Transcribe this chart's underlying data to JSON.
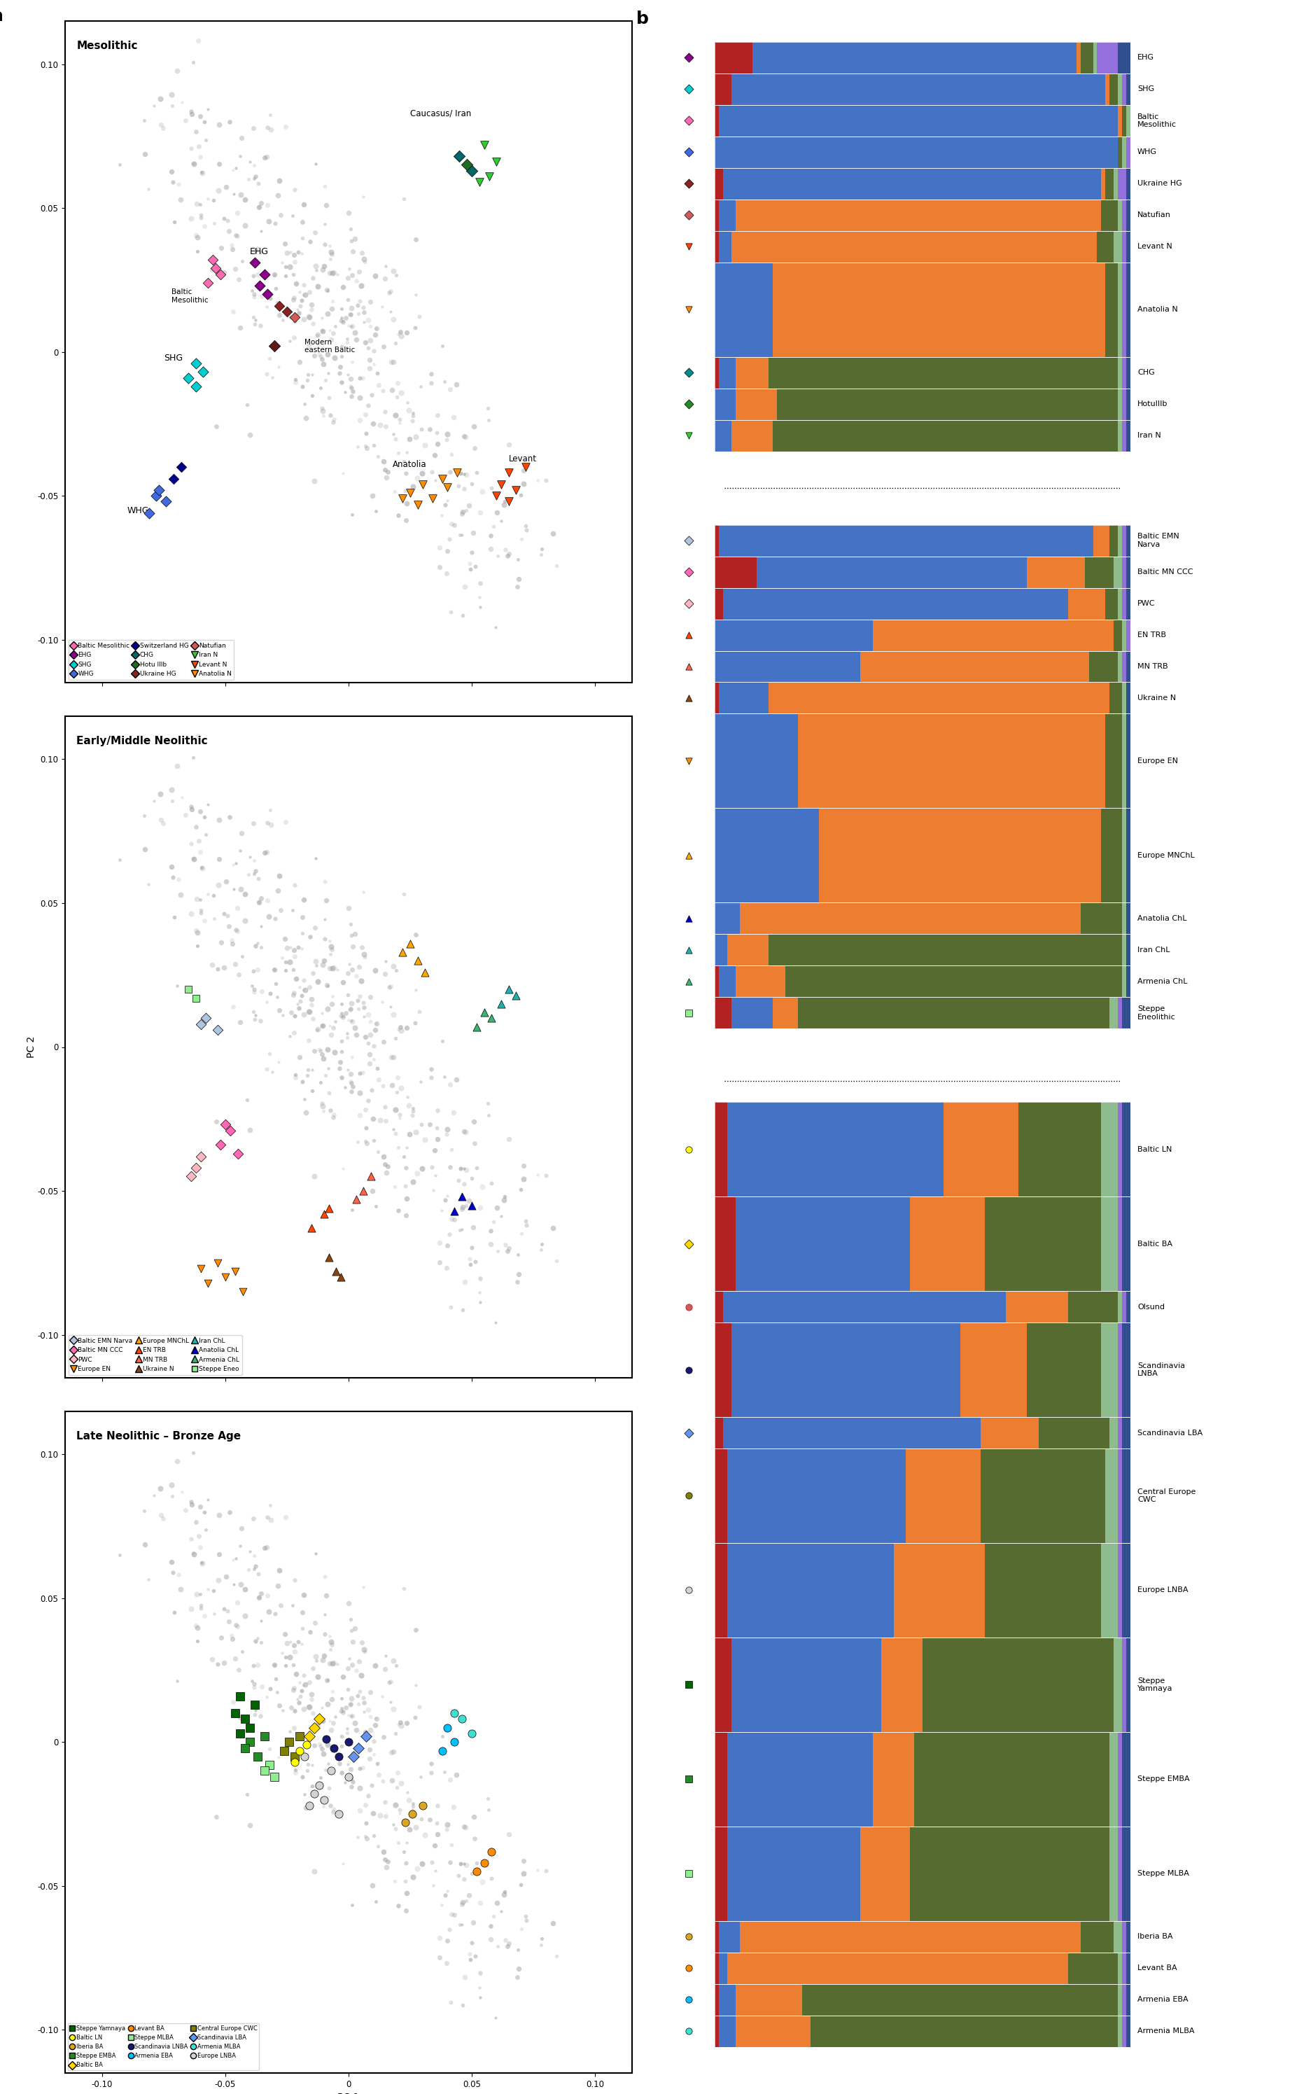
{
  "comp_colors": [
    "#B22222",
    "#4472C4",
    "#ED7D31",
    "#556B2F",
    "#8FBC8F",
    "#9370DB",
    "#2F4F8F",
    "#A0522D"
  ],
  "bar_groups": [
    {
      "name": "EHG",
      "marker": "D",
      "mcolor": "#8B008B",
      "medge": "black",
      "props": [
        0.09,
        0.78,
        0.01,
        0.03,
        0.01,
        0.05,
        0.03,
        0.0
      ],
      "sep_before": false
    },
    {
      "name": "SHG",
      "marker": "D",
      "mcolor": "#00CED1",
      "medge": "black",
      "props": [
        0.04,
        0.9,
        0.01,
        0.02,
        0.01,
        0.01,
        0.01,
        0.0
      ],
      "sep_before": false
    },
    {
      "name": "Baltic\nMesolithic",
      "marker": "D",
      "mcolor": "#FF69B4",
      "medge": "black",
      "props": [
        0.01,
        0.96,
        0.01,
        0.01,
        0.01,
        0.0,
        0.0,
        0.0
      ],
      "sep_before": false
    },
    {
      "name": "WHG",
      "marker": "D",
      "mcolor": "#4169E1",
      "medge": "black",
      "props": [
        0.0,
        0.97,
        0.0,
        0.01,
        0.01,
        0.01,
        0.0,
        0.0
      ],
      "sep_before": false
    },
    {
      "name": "Ukraine HG",
      "marker": "D",
      "mcolor": "#8B2222",
      "medge": "black",
      "props": [
        0.02,
        0.91,
        0.01,
        0.02,
        0.01,
        0.02,
        0.01,
        0.0
      ],
      "sep_before": false
    },
    {
      "name": "Natufian",
      "marker": "D",
      "mcolor": "#CD5C5C",
      "medge": "black",
      "props": [
        0.01,
        0.04,
        0.88,
        0.04,
        0.01,
        0.01,
        0.01,
        0.0
      ],
      "sep_before": false
    },
    {
      "name": "Levant N",
      "marker": "v",
      "mcolor": "#FF4500",
      "medge": "black",
      "props": [
        0.01,
        0.03,
        0.88,
        0.04,
        0.02,
        0.01,
        0.01,
        0.0
      ],
      "sep_before": false
    },
    {
      "name": "Anatolia N",
      "marker": "v",
      "mcolor": "#FF8C00",
      "medge": "black",
      "props": [
        0.0,
        0.14,
        0.8,
        0.03,
        0.01,
        0.01,
        0.01,
        0.0
      ],
      "sep_before": false
    },
    {
      "name": "CHG",
      "marker": "D",
      "mcolor": "#008B8B",
      "medge": "black",
      "props": [
        0.01,
        0.04,
        0.08,
        0.84,
        0.01,
        0.01,
        0.01,
        0.0
      ],
      "sep_before": false
    },
    {
      "name": "HotuIIIb",
      "marker": "D",
      "mcolor": "#228B22",
      "medge": "black",
      "props": [
        0.0,
        0.05,
        0.1,
        0.82,
        0.01,
        0.01,
        0.01,
        0.0
      ],
      "sep_before": false
    },
    {
      "name": "Iran N",
      "marker": "v",
      "mcolor": "#32CD32",
      "medge": "black",
      "props": [
        0.0,
        0.04,
        0.1,
        0.83,
        0.01,
        0.01,
        0.01,
        0.0
      ],
      "sep_before": false
    },
    {
      "name": "Baltic EMN\nNarva",
      "marker": "D",
      "mcolor": "#B0C4DE",
      "medge": "black",
      "props": [
        0.01,
        0.9,
        0.04,
        0.02,
        0.01,
        0.01,
        0.01,
        0.0
      ],
      "sep_before": true
    },
    {
      "name": "Baltic MN CCC",
      "marker": "D",
      "mcolor": "#FF69B4",
      "medge": "black",
      "props": [
        0.1,
        0.65,
        0.14,
        0.07,
        0.02,
        0.01,
        0.01,
        0.0
      ],
      "sep_before": false
    },
    {
      "name": "PWC",
      "marker": "D",
      "mcolor": "#FFB6C1",
      "medge": "black",
      "props": [
        0.02,
        0.83,
        0.09,
        0.03,
        0.01,
        0.01,
        0.01,
        0.0
      ],
      "sep_before": false
    },
    {
      "name": "EN TRB",
      "marker": "^",
      "mcolor": "#FF4500",
      "medge": "black",
      "props": [
        0.0,
        0.38,
        0.58,
        0.02,
        0.01,
        0.01,
        0.0,
        0.0
      ],
      "sep_before": false
    },
    {
      "name": "MN TRB",
      "marker": "^",
      "mcolor": "#FF6347",
      "medge": "black",
      "props": [
        0.0,
        0.35,
        0.55,
        0.07,
        0.01,
        0.01,
        0.01,
        0.0
      ],
      "sep_before": false
    },
    {
      "name": "Ukraine N",
      "marker": "^",
      "mcolor": "#8B4513",
      "medge": "black",
      "props": [
        0.01,
        0.12,
        0.82,
        0.03,
        0.01,
        0.0,
        0.01,
        0.0
      ],
      "sep_before": false
    },
    {
      "name": "Europe EN",
      "marker": "v",
      "mcolor": "#FF8C00",
      "medge": "black",
      "props": [
        0.0,
        0.2,
        0.74,
        0.04,
        0.01,
        0.0,
        0.01,
        0.0
      ],
      "sep_before": false
    },
    {
      "name": "Europe MNChL",
      "marker": "^",
      "mcolor": "#FFA500",
      "medge": "black",
      "props": [
        0.0,
        0.25,
        0.68,
        0.05,
        0.01,
        0.0,
        0.01,
        0.0
      ],
      "sep_before": false
    },
    {
      "name": "Anatolia ChL",
      "marker": "^",
      "mcolor": "#0000CD",
      "medge": "black",
      "props": [
        0.0,
        0.06,
        0.82,
        0.1,
        0.01,
        0.0,
        0.01,
        0.0
      ],
      "sep_before": false
    },
    {
      "name": "Iran ChL",
      "marker": "^",
      "mcolor": "#20B2AA",
      "medge": "black",
      "props": [
        0.0,
        0.03,
        0.1,
        0.85,
        0.01,
        0.0,
        0.01,
        0.0
      ],
      "sep_before": false
    },
    {
      "name": "Armenia ChL",
      "marker": "^",
      "mcolor": "#3CB371",
      "medge": "black",
      "props": [
        0.01,
        0.04,
        0.12,
        0.81,
        0.01,
        0.0,
        0.01,
        0.0
      ],
      "sep_before": false
    },
    {
      "name": "Steppe\nEneolithic",
      "marker": "s",
      "mcolor": "#90EE90",
      "medge": "black",
      "props": [
        0.04,
        0.1,
        0.06,
        0.75,
        0.02,
        0.01,
        0.02,
        0.0
      ],
      "sep_before": false
    },
    {
      "name": "Baltic LN",
      "marker": "o",
      "mcolor": "#FFFF00",
      "medge": "black",
      "props": [
        0.03,
        0.52,
        0.18,
        0.2,
        0.04,
        0.01,
        0.02,
        0.0
      ],
      "sep_before": true
    },
    {
      "name": "Baltic BA",
      "marker": "D",
      "mcolor": "#FFD700",
      "medge": "black",
      "props": [
        0.05,
        0.42,
        0.18,
        0.28,
        0.04,
        0.01,
        0.02,
        0.0
      ],
      "sep_before": false
    },
    {
      "name": "Olsund",
      "marker": "o",
      "mcolor": "#CD5C5C",
      "medge": "#CD0000",
      "props": [
        0.02,
        0.68,
        0.15,
        0.12,
        0.01,
        0.01,
        0.01,
        0.0
      ],
      "sep_before": false
    },
    {
      "name": "Scandinavia\nLNBA",
      "marker": "o",
      "mcolor": "#191970",
      "medge": "black",
      "props": [
        0.04,
        0.55,
        0.16,
        0.18,
        0.04,
        0.01,
        0.02,
        0.0
      ],
      "sep_before": false
    },
    {
      "name": "Scandinavia LBA",
      "marker": "D",
      "mcolor": "#6495ED",
      "medge": "black",
      "props": [
        0.02,
        0.62,
        0.14,
        0.17,
        0.02,
        0.01,
        0.02,
        0.0
      ],
      "sep_before": false
    },
    {
      "name": "Central Europe\nCWC",
      "marker": "o",
      "mcolor": "#808000",
      "medge": "black",
      "props": [
        0.03,
        0.43,
        0.18,
        0.3,
        0.03,
        0.01,
        0.02,
        0.0
      ],
      "sep_before": false
    },
    {
      "name": "Europe LNBA",
      "marker": "o",
      "mcolor": "#D3D3D3",
      "medge": "black",
      "props": [
        0.03,
        0.4,
        0.22,
        0.28,
        0.04,
        0.01,
        0.02,
        0.0
      ],
      "sep_before": false
    },
    {
      "name": "Steppe\nYamnaya",
      "marker": "s",
      "mcolor": "#006400",
      "medge": "black",
      "props": [
        0.04,
        0.36,
        0.1,
        0.46,
        0.02,
        0.01,
        0.01,
        0.0
      ],
      "sep_before": false
    },
    {
      "name": "Steppe EMBA",
      "marker": "s",
      "mcolor": "#228B22",
      "medge": "black",
      "props": [
        0.03,
        0.35,
        0.1,
        0.47,
        0.02,
        0.01,
        0.02,
        0.0
      ],
      "sep_before": false
    },
    {
      "name": "Steppe MLBA",
      "marker": "s",
      "mcolor": "#90EE90",
      "medge": "black",
      "props": [
        0.03,
        0.32,
        0.12,
        0.48,
        0.02,
        0.01,
        0.02,
        0.0
      ],
      "sep_before": false
    },
    {
      "name": "Iberia BA",
      "marker": "o",
      "mcolor": "#DAA520",
      "medge": "black",
      "props": [
        0.01,
        0.05,
        0.82,
        0.08,
        0.02,
        0.01,
        0.01,
        0.0
      ],
      "sep_before": false
    },
    {
      "name": "Levant BA",
      "marker": "o",
      "mcolor": "#FF8C00",
      "medge": "black",
      "props": [
        0.01,
        0.02,
        0.82,
        0.12,
        0.01,
        0.01,
        0.01,
        0.0
      ],
      "sep_before": false
    },
    {
      "name": "Armenia EBA",
      "marker": "o",
      "mcolor": "#00BFFF",
      "medge": "black",
      "props": [
        0.01,
        0.04,
        0.16,
        0.76,
        0.01,
        0.01,
        0.01,
        0.0
      ],
      "sep_before": false
    },
    {
      "name": "Armenia MLBA",
      "marker": "o",
      "mcolor": "#40E0D0",
      "medge": "black",
      "props": [
        0.01,
        0.04,
        0.18,
        0.74,
        0.01,
        0.01,
        0.01,
        0.0
      ],
      "sep_before": false
    }
  ],
  "pca_xlim": [
    -0.115,
    0.115
  ],
  "pca_ylim": [
    -0.115,
    0.115
  ],
  "pca_xticks": [
    -0.1,
    -0.05,
    0.0,
    0.05,
    0.1
  ],
  "pca_yticks": [
    -0.1,
    -0.05,
    0.0,
    0.05,
    0.1
  ]
}
